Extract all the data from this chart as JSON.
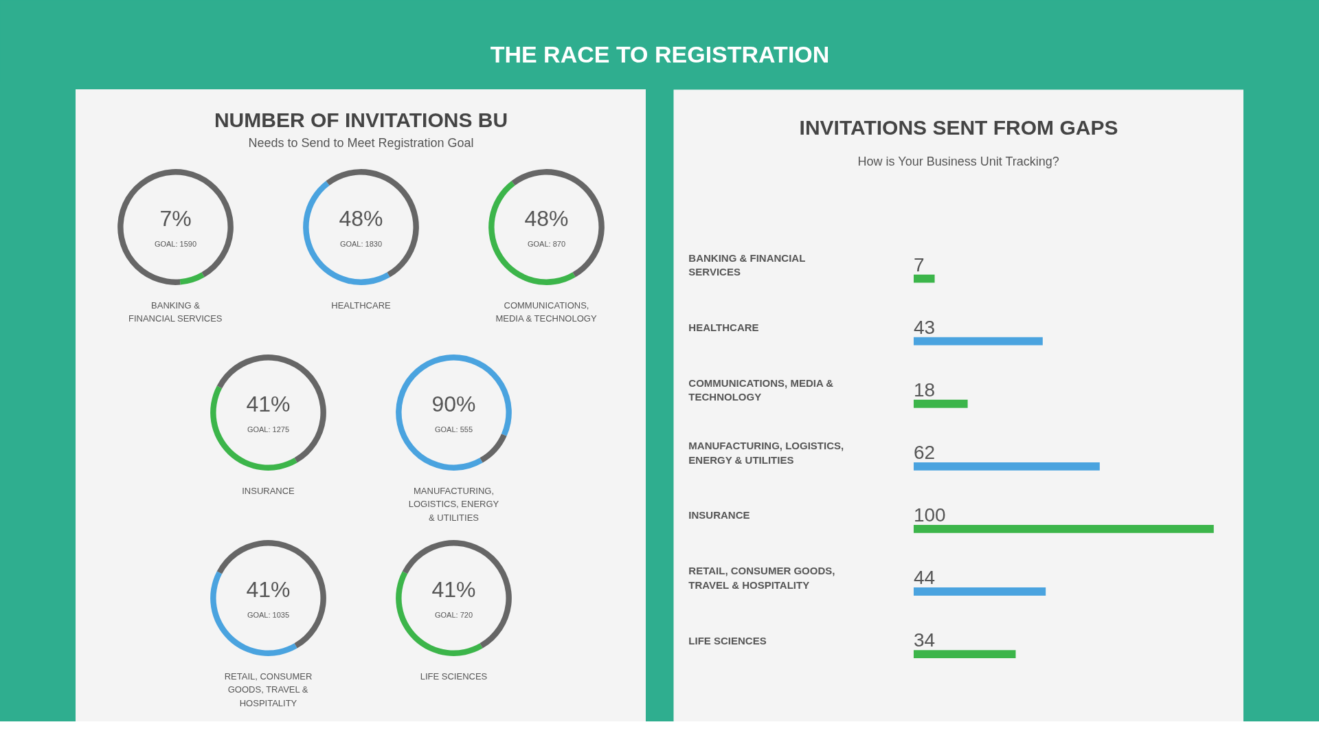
{
  "chart_data": [
    {
      "type": "other",
      "title": "THE RACE TO REGISTRATION"
    },
    {
      "type": "other",
      "title": "NUMBER OF INVITATIONS BU",
      "subtitle": "Needs to Send to Meet Registration Goal"
    },
    {
      "type": "donut",
      "categories": [
        "BANKING & FINANCIAL SERVICES",
        null
      ],
      "values": [
        7,
        93
      ],
      "colors": [
        "#3cb54a",
        "#666666"
      ],
      "annotations": [
        "7%",
        "GOAL: 1590"
      ]
    },
    {
      "type": "donut",
      "categories": [
        "HEALTHCARE",
        null
      ],
      "values": [
        48,
        52
      ],
      "colors": [
        "#4aa3df",
        "#666666"
      ],
      "annotations": [
        "48%",
        "GOAL: 1830"
      ]
    },
    {
      "type": "donut",
      "categories": [
        "COMMUNICATIONS, MEDIA & TECHNOLOGY",
        null
      ],
      "values": [
        48,
        52
      ],
      "colors": [
        "#3cb54a",
        "#666666"
      ],
      "annotations": [
        "48%",
        "GOAL: 870"
      ]
    },
    {
      "type": "donut",
      "categories": [
        "INSURANCE",
        null
      ],
      "values": [
        41,
        59
      ],
      "colors": [
        "#3cb54a",
        "#666666"
      ],
      "annotations": [
        "41%",
        "GOAL: 1275"
      ]
    },
    {
      "type": "donut",
      "categories": [
        "MANUFACTURING, LOGISTICS, ENERGY & UTILITIES",
        null
      ],
      "values": [
        90,
        10
      ],
      "colors": [
        "#4aa3df",
        "#666666"
      ],
      "annotations": [
        "90%",
        "GOAL: 555"
      ]
    },
    {
      "type": "donut",
      "categories": [
        "RETAIL, CONSUMER GOODS, TRAVEL & HOSPITALITY",
        null
      ],
      "values": [
        41,
        59
      ],
      "colors": [
        "#4aa3df",
        "#666666"
      ],
      "annotations": [
        "41%",
        "GOAL: 1035"
      ]
    },
    {
      "type": "donut",
      "categories": [
        "LIFE SCIENCES",
        null
      ],
      "values": [
        41,
        59
      ],
      "colors": [
        "#3cb54a",
        "#666666"
      ],
      "annotations": [
        "41%",
        "GOAL: 720"
      ]
    },
    {
      "type": "bar",
      "orientation": "horizontal",
      "title": "INVITATIONS SENT FROM GAPS",
      "subtitle": "How is Your Business Unit Tracking?",
      "categories": [
        "BANKING & FINANCIAL SERVICES",
        "HEALTHCARE",
        "COMMUNICATIONS, MEDIA & TECHNOLOGY",
        "MANUFACTURING, LOGISTICS, ENERGY & UTILITIES",
        "INSURANCE",
        "RETAIL, CONSUMER GOODS, TRAVEL & HOSPITALITY",
        "LIFE SCIENCES"
      ],
      "values": [
        7,
        43,
        18,
        62,
        100,
        44,
        34
      ],
      "colors": [
        "#3cb54a",
        "#4aa3df",
        "#3cb54a",
        "#4aa3df",
        "#3cb54a",
        "#4aa3df",
        "#3cb54a"
      ],
      "data_labels": true
    }
  ]
}
